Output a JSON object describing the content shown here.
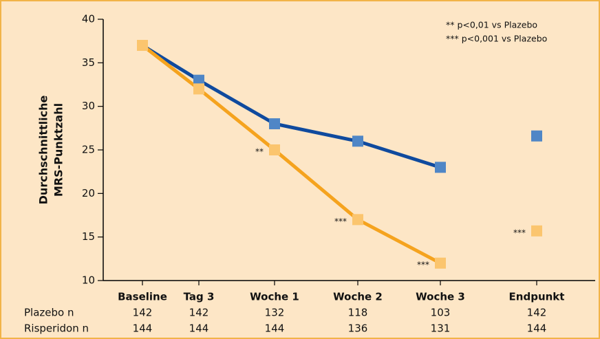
{
  "chart_data": {
    "type": "line",
    "ylabel": [
      "Durchschnittliche",
      "MRS-Punktzahl"
    ],
    "notes": [
      "** p<0,01 vs Plazebo",
      "*** p<0,001 vs Plazebo"
    ],
    "categories": [
      "Baseline",
      "Tag 3",
      "Woche 1",
      "Woche 2",
      "Woche 3",
      "Endpunkt"
    ],
    "series": [
      {
        "line_color": "#0f4a9e",
        "color": "#4f86c6",
        "values": [
          37,
          33,
          28,
          26,
          23,
          26.6
        ]
      },
      {
        "line_color": "#f5a31e",
        "color": "#fbc56e",
        "values": [
          37,
          32,
          25,
          17,
          12,
          15.7
        ]
      }
    ],
    "annotations": [
      {
        "series": 1,
        "index": 2,
        "text": "**"
      },
      {
        "series": 1,
        "index": 3,
        "text": "***"
      },
      {
        "series": 1,
        "index": 4,
        "text": "***"
      },
      {
        "series": 1,
        "index": 5,
        "text": "***"
      }
    ],
    "ylim": [
      10,
      40
    ],
    "yticks": [
      10,
      15,
      20,
      25,
      30,
      35,
      40
    ],
    "n_table": [
      {
        "label": "Plazebo n",
        "values": [
          142,
          142,
          132,
          118,
          103,
          142
        ]
      },
      {
        "label": "Risperidon n",
        "values": [
          144,
          144,
          144,
          136,
          131,
          144
        ]
      }
    ]
  }
}
